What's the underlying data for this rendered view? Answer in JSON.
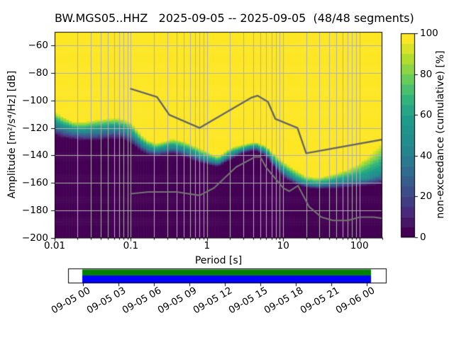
{
  "title": "BW.MGS05..HHZ   2025-09-05 -- 2025-09-05  (48/48 segments)",
  "axes": {
    "period": {
      "label": "Period [s]",
      "scale": "log",
      "range": [
        0.01,
        200
      ],
      "tick_values": [
        0.01,
        0.1,
        1,
        10,
        100
      ],
      "tick_labels": [
        "0.01",
        "0.1",
        "1",
        "10",
        "100"
      ]
    },
    "amplitude": {
      "label": "Amplitude [m²/s⁴/Hz] [dB]",
      "range": [
        -200,
        -50
      ],
      "tick_values": [
        -60,
        -80,
        -100,
        -120,
        -140,
        -160,
        -180,
        -200
      ],
      "tick_labels": [
        "−60",
        "−80",
        "−100",
        "−120",
        "−140",
        "−160",
        "−180",
        "−200"
      ]
    }
  },
  "colorbar": {
    "label": "non-exceedance (cumulative) [%]",
    "range": [
      0,
      100
    ],
    "steps": 20,
    "tick_values": [
      0,
      20,
      40,
      60,
      80,
      100
    ],
    "tick_labels": [
      "0",
      "20",
      "40",
      "60",
      "80",
      "100"
    ]
  },
  "coverage": {
    "tick_labels": [
      "09-05 00",
      "09-05 03",
      "09-05 06",
      "09-05 09",
      "09-05 12",
      "09-05 15",
      "09-05 18",
      "09-05 21",
      "09-06 00"
    ],
    "processed_color": "#008000",
    "data_color": "#0000ff"
  },
  "colors": {
    "background": "#ffffff",
    "grid": "#b0b0b0",
    "spine": "#000000",
    "nhnm_line": "#666666",
    "nlnm_line": "#747474",
    "viridis_stops": [
      [
        0.0,
        "#440154"
      ],
      [
        0.1,
        "#482878"
      ],
      [
        0.2,
        "#3e4a89"
      ],
      [
        0.3,
        "#31688e"
      ],
      [
        0.4,
        "#26828e"
      ],
      [
        0.5,
        "#21918c"
      ],
      [
        0.6,
        "#1f9e89"
      ],
      [
        0.7,
        "#35b779"
      ],
      [
        0.8,
        "#6ece58"
      ],
      [
        0.9,
        "#b5de2b"
      ],
      [
        1.0,
        "#fde725"
      ]
    ]
  },
  "chart_data": {
    "type": "heatmap",
    "title": "BW.MGS05..HHZ   2025-09-05 -- 2025-09-05  (48/48 segments)",
    "xlabel": "Period [s]",
    "ylabel": "Amplitude [m²/s⁴/Hz] [dB]",
    "zlabel": "non-exceedance (cumulative) [%]",
    "x_range": [
      0.01,
      200
    ],
    "y_range": [
      -200,
      -50
    ],
    "z_range": [
      0,
      100
    ],
    "period_bin_octaves": 0.125,
    "db_bin_width": 1,
    "distribution": {
      "periods": [
        0.01,
        0.013,
        0.018,
        0.025,
        0.035,
        0.05,
        0.065,
        0.08,
        0.1,
        0.112,
        0.14,
        0.17,
        0.22,
        0.27,
        0.35,
        0.45,
        0.55,
        0.8,
        1.1,
        1.4,
        2.0,
        3.0,
        4.3,
        6.0,
        8.0,
        11.0,
        15.0,
        20.0,
        28.0,
        40.0,
        55.0,
        75.0,
        100.0,
        130.0,
        160.0,
        200.0
      ],
      "db_at_100pct": [
        -108.0,
        -112.0,
        -115.5,
        -115.5,
        -114.0,
        -113.0,
        -112.6,
        -113.5,
        -115.5,
        -119.0,
        -125.5,
        -129.0,
        -131.0,
        -129.5,
        -127.8,
        -129.0,
        -130.5,
        -134.6,
        -138.3,
        -140.5,
        -134.5,
        -132.0,
        -130.2,
        -133.0,
        -140.0,
        -146.0,
        -151.0,
        -155.0,
        -156.0,
        -154.5,
        -152.0,
        -149.5,
        -145.5,
        -140.5,
        -136.0,
        -130.5
      ],
      "db_at_50pct": [
        -116.5,
        -119.0,
        -121.5,
        -122.0,
        -121.0,
        -120.0,
        -119.5,
        -121.0,
        -123.0,
        -126.0,
        -131.5,
        -134.5,
        -136.0,
        -135.0,
        -133.5,
        -135.0,
        -136.5,
        -140.5,
        -143.5,
        -145.0,
        -139.5,
        -135.5,
        -133.5,
        -137.0,
        -145.5,
        -152.5,
        -157.5,
        -160.5,
        -161.5,
        -160.0,
        -158.5,
        -157.5,
        -157.0,
        -156.0,
        -154.0,
        -152.0
      ],
      "db_at_0pct": [
        -125.5,
        -127.5,
        -128.5,
        -129.5,
        -129.5,
        -128.5,
        -128.0,
        -128.5,
        -131.0,
        -133.5,
        -137.5,
        -139.5,
        -140.5,
        -140.0,
        -139.0,
        -140.5,
        -142.0,
        -145.5,
        -147.5,
        -148.5,
        -143.5,
        -138.5,
        -136.5,
        -141.0,
        -150.5,
        -157.5,
        -161.5,
        -163.5,
        -164.5,
        -164.5,
        -164.0,
        -163.5,
        -163.0,
        -162.5,
        -162.0,
        -161.5
      ]
    },
    "noise_models": {
      "nhnm": {
        "periods": [
          0.1,
          0.22,
          0.32,
          0.8,
          3.8,
          4.6,
          6.3,
          7.9,
          15.4,
          20.0,
          200.0
        ],
        "db": [
          -91.5,
          -97.4,
          -110.5,
          -120.0,
          -98.0,
          -96.5,
          -101.0,
          -113.5,
          -120.0,
          -138.5,
          -128.5
        ]
      },
      "nlnm": {
        "periods": [
          0.1,
          0.17,
          0.4,
          0.8,
          1.24,
          2.4,
          4.3,
          5.0,
          6.0,
          10.0,
          12.0,
          15.6,
          21.9,
          31.6,
          45.0,
          70.0,
          101.0,
          154.0,
          200.0
        ],
        "db": [
          -168.0,
          -166.7,
          -166.7,
          -169.2,
          -163.7,
          -148.6,
          -141.1,
          -141.1,
          -149.0,
          -163.8,
          -166.2,
          -162.1,
          -177.5,
          -185.0,
          -187.5,
          -187.5,
          -185.0,
          -185.0,
          -185.9
        ]
      }
    },
    "coverage_timeline": {
      "start_label": "09-05 00",
      "end_label": "09-06 00",
      "segments": "48/48"
    }
  }
}
